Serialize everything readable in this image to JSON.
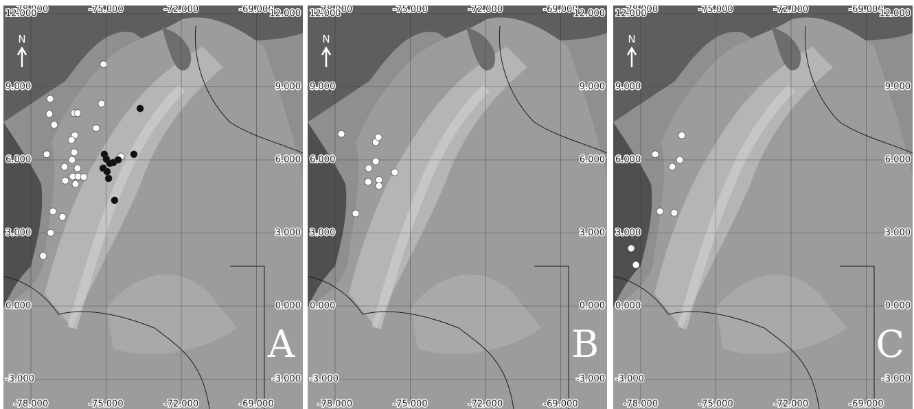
{
  "maps": {
    "north": "N",
    "xticks": [
      {
        "value": -78,
        "label": "-78.000"
      },
      {
        "value": -75,
        "label": "-75.000"
      },
      {
        "value": -72,
        "label": "-72.000"
      },
      {
        "value": -69,
        "label": "-69.000"
      }
    ],
    "yticks": [
      {
        "value": 12,
        "label": "12.000"
      },
      {
        "value": 9,
        "label": "9.000"
      },
      {
        "value": 6,
        "label": "6.000"
      },
      {
        "value": 3,
        "label": "3.000"
      },
      {
        "value": 0,
        "label": "0.000"
      },
      {
        "value": -3,
        "label": "-3.000"
      }
    ],
    "panels": [
      {
        "label": "A",
        "series": [
          {
            "color": "#ffffff",
            "points": [
              [
                -75.1,
                9.92
              ],
              [
                -77.23,
                8.51
              ],
              [
                -77.26,
                7.89
              ],
              [
                -77.07,
                7.44
              ],
              [
                -76.27,
                7.92
              ],
              [
                -76.14,
                7.92
              ],
              [
                -75.18,
                8.31
              ],
              [
                -75.4,
                7.3
              ],
              [
                -76.25,
                7.01
              ],
              [
                -76.38,
                6.82
              ],
              [
                -76.27,
                6.31
              ],
              [
                -77.37,
                6.23
              ],
              [
                -76.36,
                6.0
              ],
              [
                -76.66,
                5.72
              ],
              [
                -76.14,
                5.66
              ],
              [
                -76.63,
                5.15
              ],
              [
                -76.33,
                5.32
              ],
              [
                -76.11,
                5.32
              ],
              [
                -75.89,
                5.3
              ],
              [
                -76.22,
                5.01
              ],
              [
                -74.41,
                6.14
              ],
              [
                -77.12,
                3.89
              ],
              [
                -76.74,
                3.66
              ],
              [
                -77.21,
                3.01
              ],
              [
                -77.51,
                2.06
              ]
            ]
          },
          {
            "color": "#111111",
            "points": [
              [
                -73.64,
                8.11
              ],
              [
                -73.89,
                6.23
              ],
              [
                -75.07,
                6.23
              ],
              [
                -74.99,
                6.03
              ],
              [
                -74.85,
                5.86
              ],
              [
                -75.12,
                5.66
              ],
              [
                -74.96,
                5.52
              ],
              [
                -74.71,
                5.89
              ],
              [
                -74.52,
                6.0
              ],
              [
                -74.9,
                5.24
              ],
              [
                -74.66,
                4.34
              ]
            ]
          }
        ]
      },
      {
        "label": "B",
        "series": [
          {
            "color": "#ffffff",
            "points": [
              [
                -77.75,
                7.07
              ],
              [
                -76.38,
                6.73
              ],
              [
                -76.27,
                6.93
              ],
              [
                -76.38,
                5.94
              ],
              [
                -76.66,
                5.66
              ],
              [
                -75.62,
                5.49
              ],
              [
                -76.68,
                5.1
              ],
              [
                -76.25,
                5.18
              ],
              [
                -76.25,
                4.93
              ],
              [
                -77.18,
                3.8
              ]
            ]
          }
        ]
      },
      {
        "label": "C",
        "series": [
          {
            "color": "#ffffff",
            "points": [
              [
                -76.36,
                7.01
              ],
              [
                -77.42,
                6.23
              ],
              [
                -76.74,
                5.72
              ],
              [
                -76.44,
                6.0
              ],
              [
                -77.23,
                3.89
              ],
              [
                -76.66,
                3.83
              ],
              [
                -78.38,
                2.37
              ],
              [
                -78.19,
                1.69
              ]
            ]
          }
        ]
      }
    ]
  }
}
